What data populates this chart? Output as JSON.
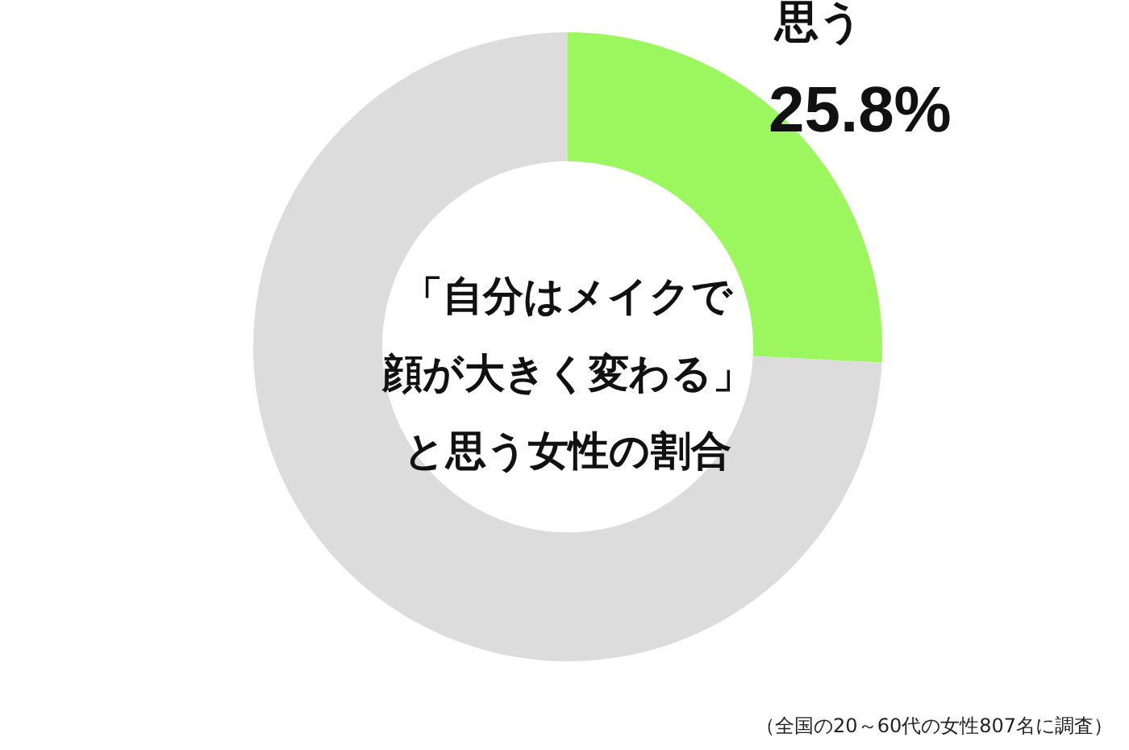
{
  "chart_data": {
    "type": "donut",
    "title": "「自分はメイクで顔が大きく変わる」と思う女性の割合",
    "categories": [
      "思う",
      null
    ],
    "values": [
      25.8,
      74.2
    ],
    "colors": [
      "#9cf75e",
      "#dcdcdc"
    ],
    "value_labels": [
      "25.8%",
      null
    ],
    "legend": false,
    "annotations": [
      "（全国の20～60代の女性807名に調査）"
    ]
  }
}
